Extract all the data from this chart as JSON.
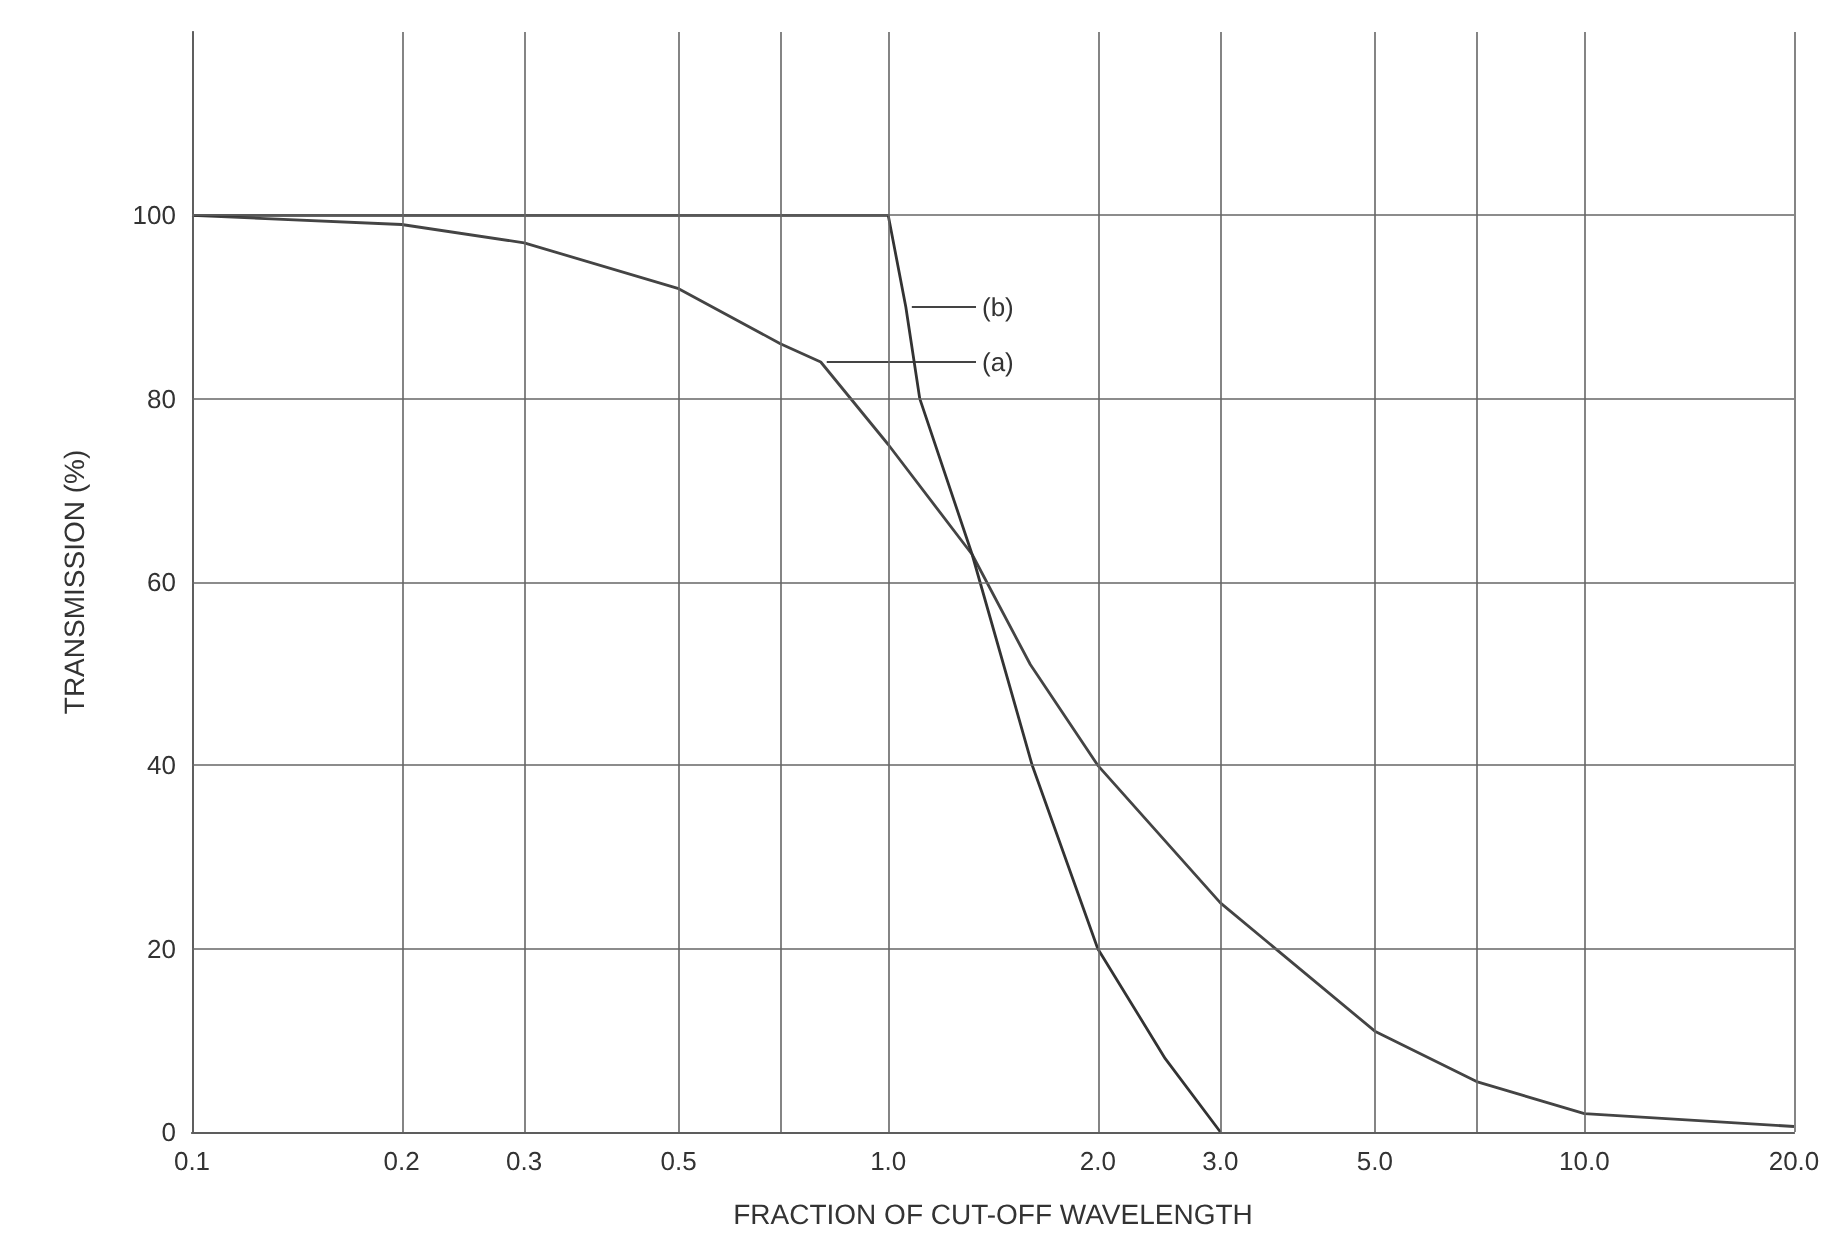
{
  "chart_data": {
    "type": "line",
    "xlabel": "FRACTION OF CUT-OFF WAVELENGTH",
    "ylabel": "TRANSMISSION (%)",
    "log": "x",
    "grid": true,
    "legend": false,
    "marker": "none",
    "line_style": "solid",
    "xlim": [
      0.1,
      20
    ],
    "xticks": [
      0.1,
      0.2,
      0.3,
      0.5,
      {
        "value": 0.7,
        "label": null
      },
      {
        "value": 1,
        "label": "1.0"
      },
      {
        "value": 2,
        "label": "2.0"
      },
      {
        "value": 3,
        "label": "3.0"
      },
      {
        "value": 5,
        "label": "5.0"
      },
      {
        "value": 7,
        "label": null
      },
      {
        "value": 10,
        "label": "10.0"
      },
      {
        "value": 20,
        "label": "20.0"
      }
    ],
    "ylim": [
      0,
      120
    ],
    "yticks": [
      0,
      20,
      40,
      60,
      80,
      100
    ],
    "series": [
      {
        "color": "#444444",
        "x": [
          0.1,
          0.2,
          0.3,
          0.5,
          0.7,
          0.8,
          1.0,
          1.32,
          1.6,
          2.0,
          3.0,
          5.0,
          7.0,
          10,
          20
        ],
        "values": [
          100,
          99,
          97,
          92,
          86,
          84,
          75,
          63,
          51,
          40,
          25,
          11,
          5.5,
          2,
          0.6
        ]
      },
      {
        "color": "#333333",
        "x": [
          0.1,
          1.0,
          1.06,
          1.11,
          1.32,
          1.61,
          2.0,
          2.5,
          3.0
        ],
        "values": [
          100,
          100,
          90,
          80,
          63,
          40,
          20,
          8,
          0
        ]
      }
    ],
    "annotations": [
      {
        "text": "(a)",
        "x": 0.8,
        "y": 84
      },
      {
        "text": "(b)",
        "x": 1.06,
        "y": 90
      }
    ]
  }
}
